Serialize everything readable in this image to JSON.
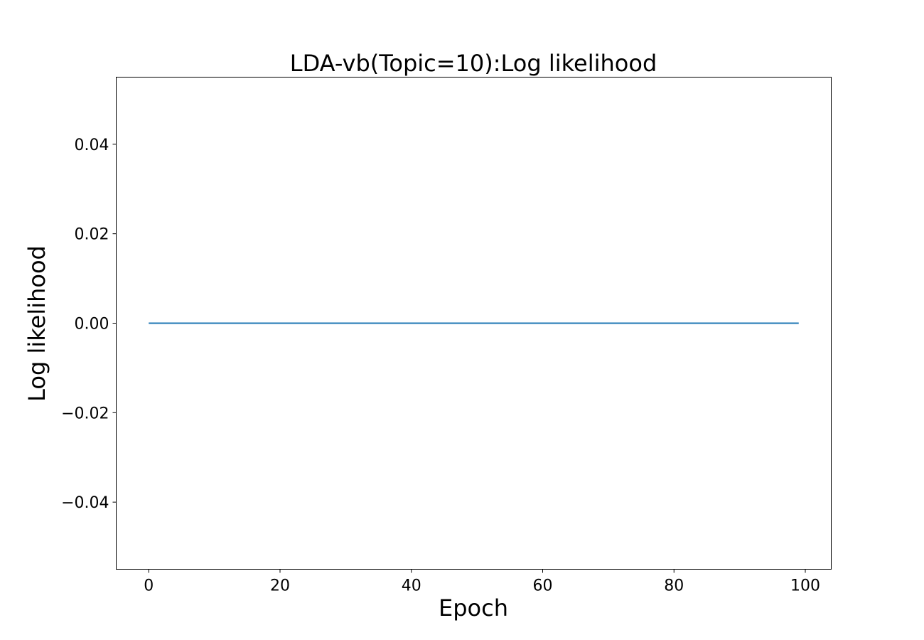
{
  "chart_data": {
    "type": "line",
    "title": "LDA-vb(Topic=10):Log likelihood",
    "xlabel": "Epoch",
    "ylabel": "Log likelihood",
    "xlim": [
      -4.95,
      103.95
    ],
    "ylim": [
      -0.055,
      0.055
    ],
    "x_ticks": [
      0,
      20,
      40,
      60,
      80,
      100
    ],
    "x_tick_labels": [
      "0",
      "20",
      "40",
      "60",
      "80",
      "100"
    ],
    "y_ticks": [
      -0.04,
      -0.02,
      0.0,
      0.02,
      0.04
    ],
    "y_tick_labels": [
      "−0.04",
      "−0.02",
      "0.00",
      "0.02",
      "0.04"
    ],
    "grid": false,
    "series": [
      {
        "color": "#1f77b4",
        "x_range": [
          0,
          99
        ],
        "y_constant": 0.0
      }
    ]
  }
}
